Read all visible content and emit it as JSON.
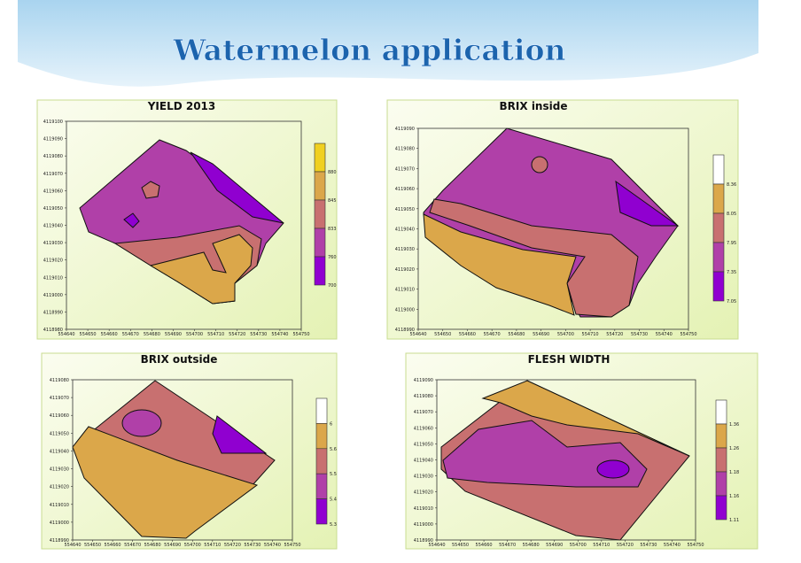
{
  "title": "Watermelon application",
  "panels": [
    {
      "title": "YIELD 2013",
      "y_ticks": [
        4119100,
        4119090,
        4119080,
        4119070,
        4119060,
        4119050,
        4119040,
        4119030,
        4119020,
        4119010,
        4119000,
        4118990,
        4118980
      ],
      "x_ticks": [
        554640,
        554650,
        554660,
        554670,
        554680,
        554690,
        554700,
        554710,
        554720,
        554730,
        554740,
        554750
      ],
      "legend_labels": [
        "880",
        "845",
        "833",
        "760",
        "700"
      ]
    },
    {
      "title": "BRIX inside",
      "y_ticks": [
        4119090,
        4119080,
        4119070,
        4119060,
        4119050,
        4119040,
        4119030,
        4119020,
        4119010,
        4119000,
        4118990
      ],
      "x_ticks": [
        554640,
        554650,
        554660,
        554670,
        554680,
        554690,
        554700,
        554710,
        554720,
        554730,
        554740,
        554750
      ],
      "legend_labels": [
        "8.36",
        "8.05",
        "7.95",
        "7.35",
        "7.05"
      ]
    },
    {
      "title": "BRIX outside",
      "y_ticks": [
        4119080,
        4119070,
        4119060,
        4119050,
        4119040,
        4119030,
        4119020,
        4119010,
        4119000,
        4118990
      ],
      "x_ticks": [
        554640,
        554650,
        554660,
        554670,
        554680,
        554690,
        554700,
        554710,
        554720,
        554730,
        554740,
        554750
      ],
      "legend_labels": [
        "6",
        "5.6",
        "5.5",
        "5.4",
        "5.3"
      ]
    },
    {
      "title": "FLESH WIDTH",
      "y_ticks": [
        4119090,
        4119080,
        4119070,
        4119060,
        4119050,
        4119040,
        4119030,
        4119020,
        4119010,
        4119000,
        4118990
      ],
      "x_ticks": [
        554640,
        554650,
        554660,
        554670,
        554680,
        554690,
        554700,
        554710,
        554720,
        554730,
        554740,
        554750
      ],
      "legend_labels": [
        "1.36",
        "1.26",
        "1.18",
        "1.16",
        "1.11"
      ]
    }
  ]
}
